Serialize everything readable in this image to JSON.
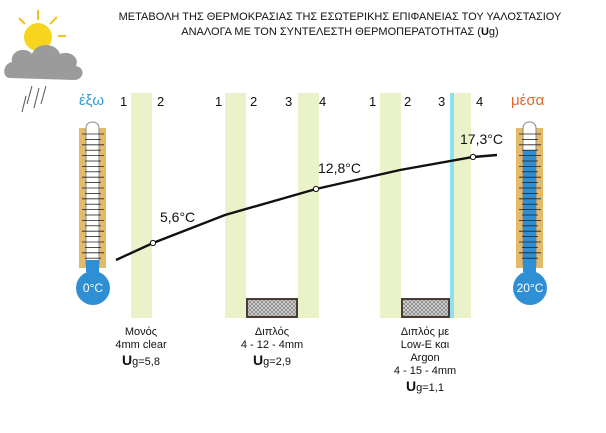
{
  "title": {
    "line1": "ΜΕΤΑΒΟΛΗ ΤΗΣ ΘΕΡΜΟΚΡΑΣΙΑΣ ΤΗΣ ΕΣΩΤΕΡΙΚΗΣ ΕΠΙΦΑΝΕΙΑΣ ΤΟΥ ΥΑΛΟΣΤΑΣΙΟΥ",
    "line2_pre": "ΑΝΑΛΟΓΑ ΜΕ ΤΟΝ ΣΥΝΤΕΛΕΣΤΗ ΘΕΡΜΟΠΕΡΑΤΟΤΗΤΑΣ (",
    "line2_u": "U",
    "line2_g": "g",
    "line2_post": ")"
  },
  "outside_label": "έξω",
  "inside_label": "μέσα",
  "outside_temp": "0°C",
  "inside_temp": "20°C",
  "colors": {
    "outside": "#2a9fd8",
    "inside": "#e2652c",
    "glass": "#e9f2c9",
    "thermo_frame": "#e3b96a",
    "thermo_bulb": "#2f8fd4",
    "low_e": "#8fe0ee"
  },
  "panes": {
    "single": [
      "1",
      "2"
    ],
    "double": [
      "1",
      "2",
      "3",
      "4"
    ],
    "lowe": [
      "1",
      "2",
      "3",
      "4"
    ]
  },
  "temperatures": [
    "5,6°C",
    "12,8°C",
    "17,3°C"
  ],
  "captions": {
    "single": {
      "line1": "Μονός",
      "line2": "4mm clear",
      "u": "U",
      "g": "g=5,8"
    },
    "double": {
      "line1": "Διπλός",
      "line2": "4 - 12 - 4mm",
      "u": "U",
      "g": "g=2,9"
    },
    "lowe": {
      "line1": "Διπλός με",
      "line2": "Low-E και",
      "line3": "Argon",
      "line4": "4 - 15 - 4mm",
      "u": "U",
      "g": "g=1,1"
    }
  },
  "icons": [
    "weather-sun-cloud-rain-icon",
    "thermometer-outside-icon",
    "thermometer-inside-icon",
    "spacer-icon"
  ]
}
